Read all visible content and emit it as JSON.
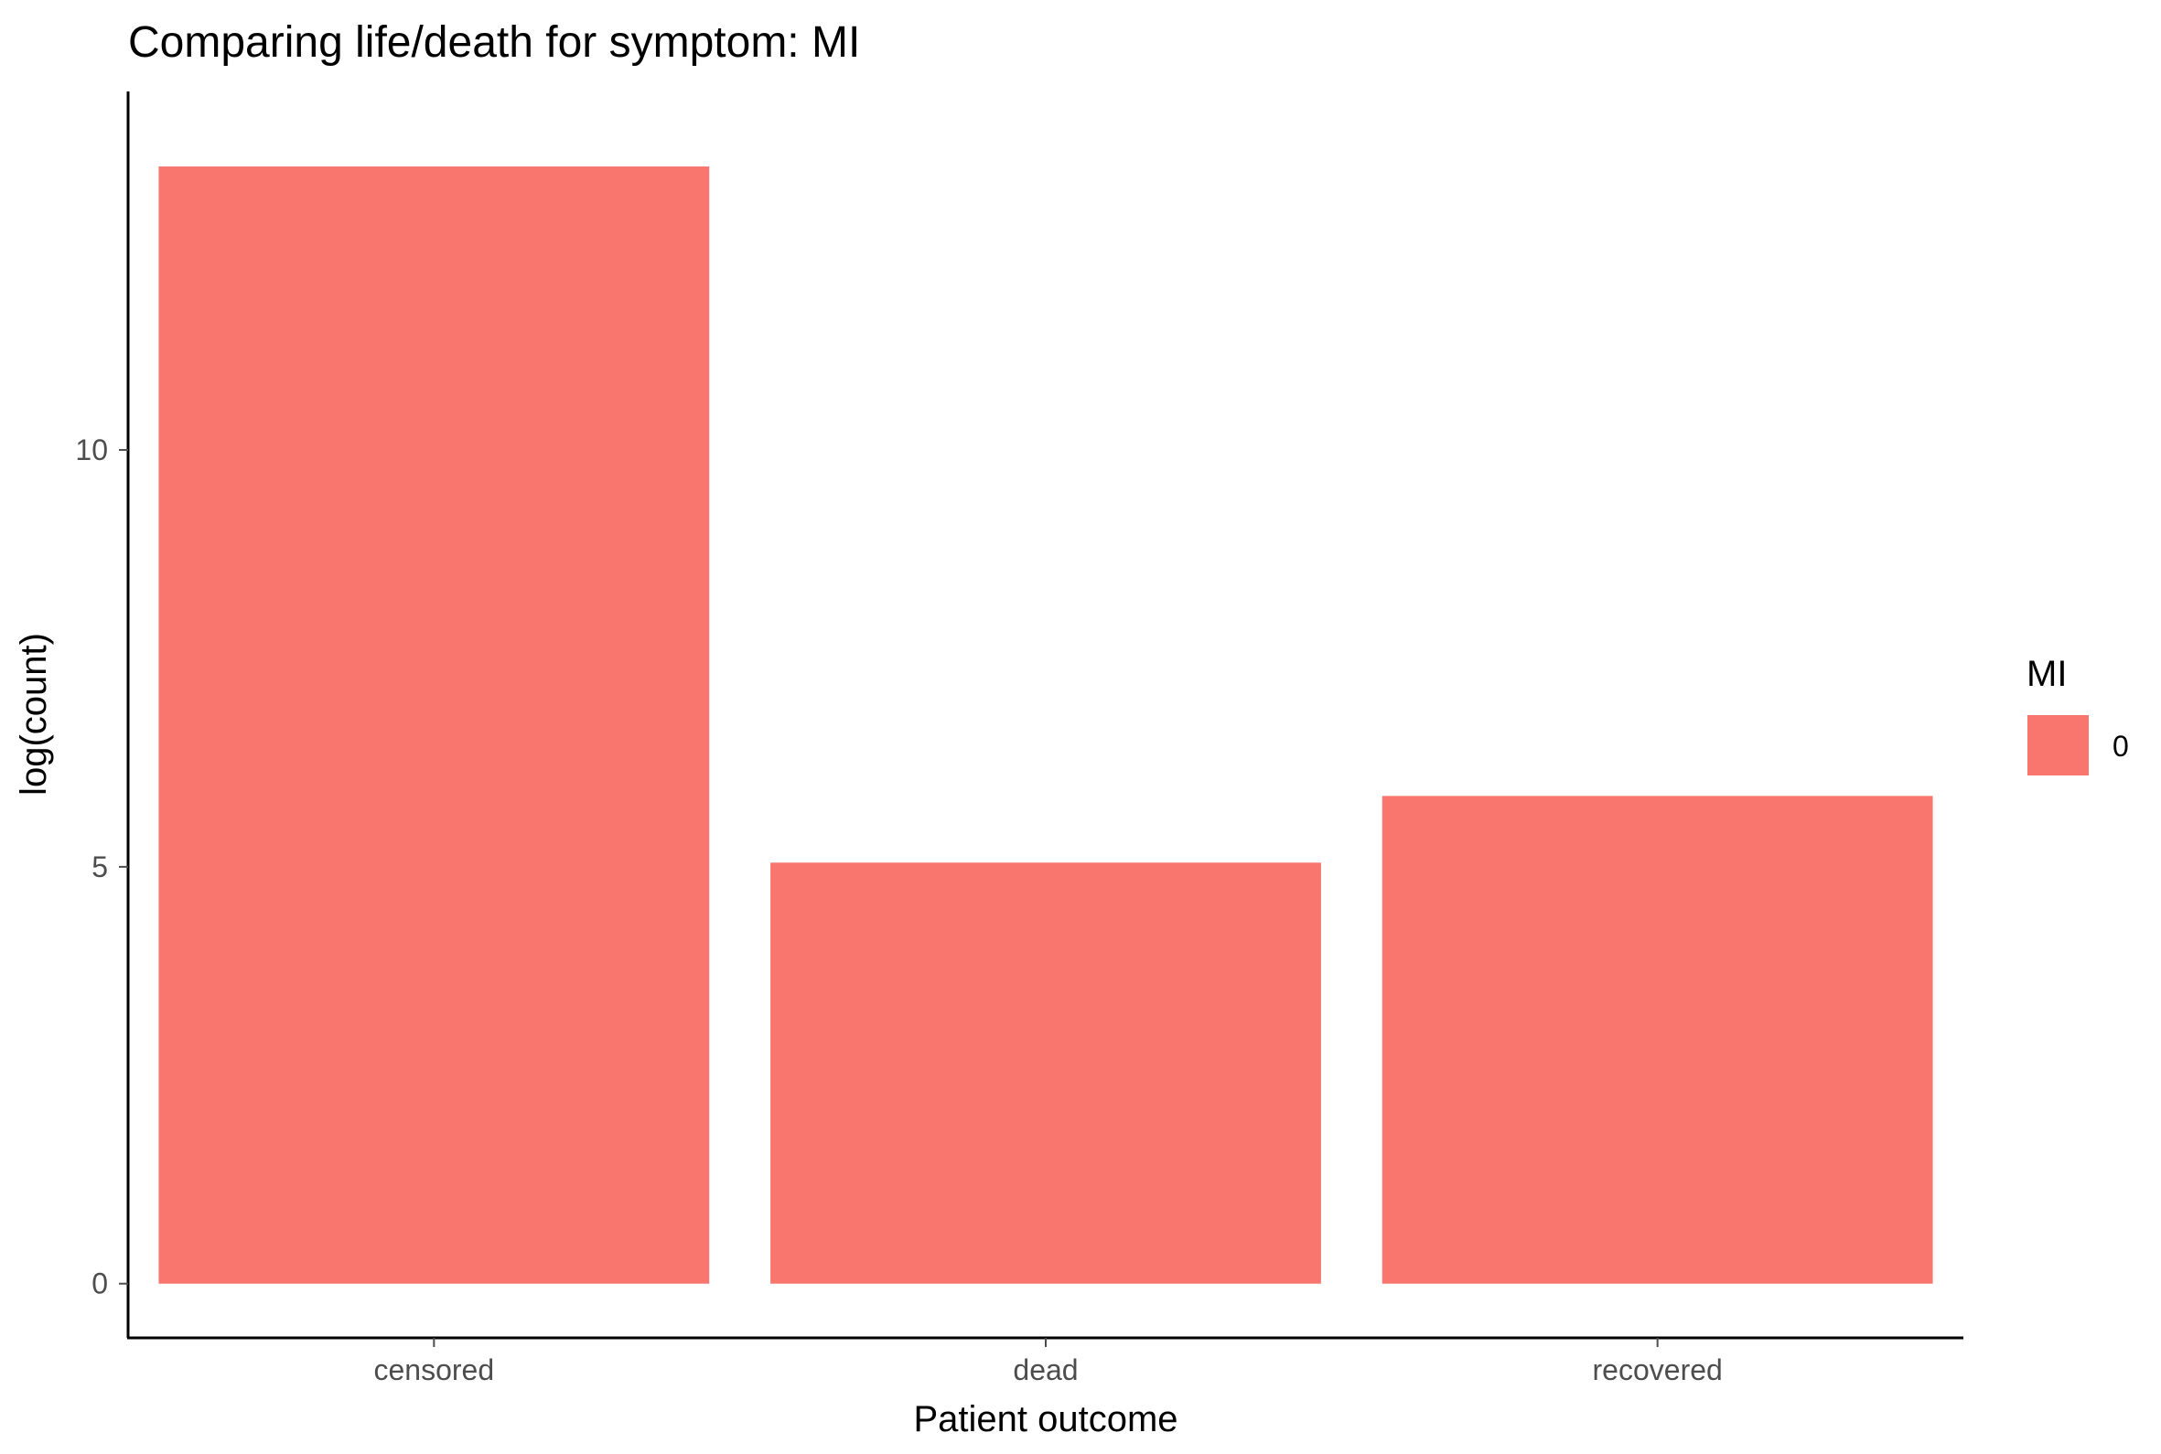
{
  "chart_data": {
    "type": "bar",
    "title": "Comparing life/death for symptom: MI",
    "xlabel": "Patient outcome",
    "ylabel": "log(count)",
    "categories": [
      "censored",
      "dead",
      "recovered"
    ],
    "series": [
      {
        "name": "0",
        "values": [
          13.4,
          5.05,
          5.85
        ]
      }
    ],
    "ylim": [
      -0.65,
      14.3
    ],
    "yticks": [
      {
        "value": 0,
        "label": "0"
      },
      {
        "value": 5,
        "label": "5"
      },
      {
        "value": 10,
        "label": "10"
      }
    ],
    "grid": false,
    "legend": {
      "title": "MI",
      "placement": "right",
      "entries": [
        {
          "label": "0",
          "color": "#F8766D"
        }
      ]
    },
    "colors": {
      "bar": "#F8766D",
      "axis": "#000000",
      "tick_text": "#4d4d4d"
    }
  }
}
